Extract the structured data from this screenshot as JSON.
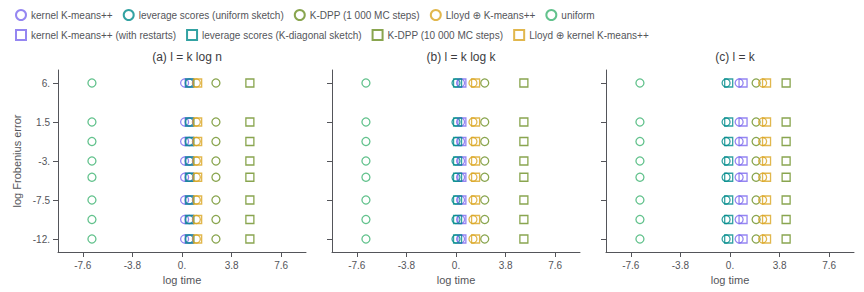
{
  "chart_data": [
    {
      "type": "scatter",
      "title": "(a) l = k log n",
      "xlabel": "log time",
      "ylabel": "log Frobenius error",
      "xlim": [
        -9.5,
        9.5
      ],
      "ylim": [
        -13.5,
        7.5
      ],
      "xticks": [
        -7.6,
        -3.8,
        {
          "value": 0.0,
          "label": "0."
        },
        3.8,
        7.6
      ],
      "yticks": [
        {
          "value": -12.0,
          "label": "-12."
        },
        -7.5,
        {
          "value": -3.0,
          "label": "-3."
        },
        1.5,
        {
          "value": 6.0,
          "label": "6."
        }
      ],
      "grid": false,
      "legend": "upper left",
      "series": [
        {
          "name": "kernel K-means++",
          "marker": "circle",
          "color": "#7B68EE",
          "x": [
            0.2,
            0.2,
            0.2,
            0.2,
            0.2,
            0.2,
            0.2,
            0.2
          ],
          "values": [
            6.0,
            1.5,
            -0.75,
            -3.0,
            -4.875,
            -7.5,
            -9.75,
            -12.0
          ]
        },
        {
          "name": "leverage scores (uniform sketch)",
          "marker": "circle",
          "color": "#008B8B",
          "x": [
            0.55,
            0.55,
            0.55,
            0.55,
            0.55,
            0.55,
            0.55,
            0.55
          ],
          "values": [
            6.0,
            1.5,
            -0.75,
            -3.0,
            -4.875,
            -7.5,
            -9.75,
            -12.0
          ]
        },
        {
          "name": "K-DPP (1 000 MC steps)",
          "marker": "circle",
          "color": "#6B8E23",
          "x": [
            2.6,
            2.6,
            2.6,
            2.6,
            2.6,
            2.6,
            2.6,
            2.6
          ],
          "values": [
            6.0,
            1.5,
            -0.75,
            -3.0,
            -4.875,
            -7.5,
            -9.75,
            -12.0
          ]
        },
        {
          "name": "Lloyd ⊕ K-means++",
          "marker": "circle",
          "color": "#DAA520",
          "x": [
            1.1,
            1.1,
            1.1,
            1.1,
            1.1,
            1.1,
            1.1,
            1.1
          ],
          "values": [
            6.0,
            1.5,
            -0.75,
            -3.0,
            -4.875,
            -7.5,
            -9.75,
            -12.0
          ]
        },
        {
          "name": "uniform",
          "marker": "circle",
          "color": "#3CB371",
          "x": [
            -6.9,
            -6.9,
            -6.9,
            -6.9,
            -6.9,
            -6.9,
            -6.9,
            -6.9
          ],
          "values": [
            6.0,
            1.5,
            -0.75,
            -3.0,
            -4.875,
            -7.5,
            -9.75,
            -12.0
          ]
        },
        {
          "name": "kernel K-means++ (with restarts)",
          "marker": "square",
          "color": "#7B68EE",
          "x": [
            0.55,
            0.55,
            0.55,
            0.55,
            0.55,
            0.55,
            0.55,
            0.55
          ],
          "values": [
            6.0,
            1.5,
            -0.75,
            -3.0,
            -4.875,
            -7.5,
            -9.75,
            -12.0
          ]
        },
        {
          "name": "leverage scores (K-diagonal sketch)",
          "marker": "square",
          "color": "#008B8B",
          "x": [
            0.6,
            0.6,
            0.6,
            0.6,
            0.6,
            0.6,
            0.6,
            0.6
          ],
          "values": [
            6.0,
            1.5,
            -0.75,
            -3.0,
            -4.875,
            -7.5,
            -9.75,
            -12.0
          ]
        },
        {
          "name": "K-DPP (10 000 MC steps)",
          "marker": "square",
          "color": "#6B8E23",
          "x": [
            5.2,
            5.2,
            5.2,
            5.2,
            5.2,
            5.2,
            5.2,
            5.2
          ],
          "values": [
            6.0,
            1.5,
            -0.75,
            -3.0,
            -4.875,
            -7.5,
            -9.75,
            -12.0
          ]
        },
        {
          "name": "Lloyd ⊕ kernel K-means++",
          "marker": "square",
          "color": "#DAA520",
          "x": [
            1.2,
            1.2,
            1.2,
            1.2,
            1.2,
            1.2,
            1.2,
            1.2
          ],
          "values": [
            6.0,
            1.5,
            -0.75,
            -3.0,
            -4.875,
            -7.5,
            -9.75,
            -12.0
          ]
        }
      ]
    },
    {
      "type": "scatter",
      "title": "(b) l = k log k",
      "xlabel": "log time",
      "xlim": [
        -9.5,
        9.5
      ],
      "ylim": [
        -13.5,
        7.5
      ],
      "xticks": [
        -7.6,
        -3.8,
        {
          "value": 0.0,
          "label": "0."
        },
        3.8,
        7.6
      ],
      "yticks": [
        {
          "value": -12.0,
          "label": "-12."
        },
        -7.5,
        {
          "value": -3.0,
          "label": "-3."
        },
        1.5,
        {
          "value": 6.0,
          "label": "6."
        }
      ],
      "grid": false,
      "tick_labels": "x",
      "series": [
        {
          "name": "kernel K-means++",
          "marker": "circle",
          "color": "#7B68EE",
          "x": [
            0.35,
            0.35,
            0.35,
            0.35,
            0.35,
            0.35,
            0.35,
            0.35
          ],
          "values": [
            6.0,
            1.5,
            -0.75,
            -3.0,
            -4.875,
            -7.5,
            -9.75,
            -12.0
          ]
        },
        {
          "name": "leverage scores (uniform sketch)",
          "marker": "circle",
          "color": "#008B8B",
          "x": [
            0.0,
            0.0,
            0.0,
            0.0,
            0.0,
            0.0,
            0.0,
            0.0
          ],
          "values": [
            6.0,
            1.5,
            -0.75,
            -3.0,
            -4.875,
            -7.5,
            -9.75,
            -12.0
          ]
        },
        {
          "name": "K-DPP (1 000 MC steps)",
          "marker": "circle",
          "color": "#6B8E23",
          "x": [
            2.2,
            2.2,
            2.2,
            2.2,
            2.2,
            2.2,
            2.2,
            2.2
          ],
          "values": [
            6.0,
            1.5,
            -0.75,
            -3.0,
            -4.875,
            -7.5,
            -9.75,
            -12.0
          ]
        },
        {
          "name": "Lloyd ⊕ K-means++",
          "marker": "circle",
          "color": "#DAA520",
          "x": [
            1.3,
            1.3,
            1.3,
            1.3,
            1.3,
            1.3,
            1.3,
            1.3
          ],
          "values": [
            6.0,
            1.5,
            -0.75,
            -3.0,
            -4.875,
            -7.5,
            -9.75,
            -12.0
          ]
        },
        {
          "name": "uniform",
          "marker": "circle",
          "color": "#3CB371",
          "x": [
            -6.9,
            -6.9,
            -6.9,
            -6.9,
            -6.9,
            -6.9,
            -6.9,
            -6.9
          ],
          "values": [
            6.0,
            1.5,
            -0.75,
            -3.0,
            -4.875,
            -7.5,
            -9.75,
            -12.0
          ]
        },
        {
          "name": "kernel K-means++ (with restarts)",
          "marker": "square",
          "color": "#7B68EE",
          "x": [
            0.45,
            0.45,
            0.45,
            0.45,
            0.45,
            0.45,
            0.45,
            0.45
          ],
          "values": [
            6.0,
            1.5,
            -0.75,
            -3.0,
            -4.875,
            -7.5,
            -9.75,
            -12.0
          ]
        },
        {
          "name": "leverage scores (K-diagonal sketch)",
          "marker": "square",
          "color": "#008B8B",
          "x": [
            0.12,
            0.12,
            0.12,
            0.12,
            0.12,
            0.12,
            0.12,
            0.12
          ],
          "values": [
            6.0,
            1.5,
            -0.75,
            -3.0,
            -4.875,
            -7.5,
            -9.75,
            -12.0
          ]
        },
        {
          "name": "K-DPP (10 000 MC steps)",
          "marker": "square",
          "color": "#6B8E23",
          "x": [
            5.2,
            5.2,
            5.2,
            5.2,
            5.2,
            5.2,
            5.2,
            5.2
          ],
          "values": [
            6.0,
            1.5,
            -0.75,
            -3.0,
            -4.875,
            -7.5,
            -9.75,
            -12.0
          ]
        },
        {
          "name": "Lloyd ⊕ kernel K-means++",
          "marker": "square",
          "color": "#DAA520",
          "x": [
            1.5,
            1.5,
            1.5,
            1.5,
            1.5,
            1.5,
            1.5,
            1.5
          ],
          "values": [
            6.0,
            1.5,
            -0.75,
            -3.0,
            -4.875,
            -7.5,
            -9.75,
            -12.0
          ]
        }
      ]
    },
    {
      "type": "scatter",
      "title": "(c) l = k",
      "xlabel": "log time",
      "xlim": [
        -9.5,
        9.5
      ],
      "ylim": [
        -13.5,
        7.5
      ],
      "xticks": [
        -7.6,
        -3.8,
        {
          "value": 0.0,
          "label": "0."
        },
        3.8,
        7.6
      ],
      "yticks": [
        {
          "value": -12.0,
          "label": "-12."
        },
        -7.5,
        {
          "value": -3.0,
          "label": "-3."
        },
        1.5,
        {
          "value": 6.0,
          "label": "6."
        }
      ],
      "grid": false,
      "tick_labels": "x",
      "series": [
        {
          "name": "kernel K-means++",
          "marker": "circle",
          "color": "#7B68EE",
          "x": [
            0.7,
            0.7,
            0.7,
            0.7,
            0.7,
            0.7,
            0.7,
            0.7
          ],
          "values": [
            6.0,
            1.5,
            -0.75,
            -3.0,
            -4.875,
            -7.5,
            -9.75,
            -12.0
          ]
        },
        {
          "name": "leverage scores (uniform sketch)",
          "marker": "circle",
          "color": "#008B8B",
          "x": [
            -0.3,
            -0.3,
            -0.3,
            -0.3,
            -0.3,
            -0.3,
            -0.3,
            -0.3
          ],
          "values": [
            6.0,
            1.5,
            -0.75,
            -3.0,
            -4.875,
            -7.5,
            -9.75,
            -12.0
          ]
        },
        {
          "name": "K-DPP (1 000 MC steps)",
          "marker": "circle",
          "color": "#6B8E23",
          "x": [
            2.0,
            2.0,
            2.0,
            2.0,
            2.0,
            2.0,
            2.0,
            2.0
          ],
          "values": [
            6.0,
            1.5,
            -0.75,
            -3.0,
            -4.875,
            -7.5,
            -9.75,
            -12.0
          ]
        },
        {
          "name": "Lloyd ⊕ K-means++",
          "marker": "circle",
          "color": "#DAA520",
          "x": [
            2.5,
            2.5,
            2.5,
            2.5,
            2.5,
            2.5,
            2.5,
            2.5
          ],
          "values": [
            6.0,
            1.5,
            -0.75,
            -3.0,
            -4.875,
            -7.5,
            -9.75,
            -12.0
          ]
        },
        {
          "name": "uniform",
          "marker": "circle",
          "color": "#3CB371",
          "x": [
            -6.9,
            -6.9,
            -6.9,
            -6.9,
            -6.9,
            -6.9,
            -6.9,
            -6.9
          ],
          "values": [
            6.0,
            1.5,
            -0.75,
            -3.0,
            -4.875,
            -7.5,
            -9.75,
            -12.0
          ]
        },
        {
          "name": "kernel K-means++ (with restarts)",
          "marker": "square",
          "color": "#7B68EE",
          "x": [
            1.0,
            1.0,
            1.0,
            1.0,
            1.0,
            1.0,
            1.0,
            1.0
          ],
          "values": [
            6.0,
            1.5,
            -0.75,
            -3.0,
            -4.875,
            -7.5,
            -9.75,
            -12.0
          ]
        },
        {
          "name": "leverage scores (K-diagonal sketch)",
          "marker": "square",
          "color": "#008B8B",
          "x": [
            -0.1,
            -0.1,
            -0.1,
            -0.1,
            -0.1,
            -0.1,
            -0.1,
            -0.1
          ],
          "values": [
            6.0,
            1.5,
            -0.75,
            -3.0,
            -4.875,
            -7.5,
            -9.75,
            -12.0
          ]
        },
        {
          "name": "K-DPP (10 000 MC steps)",
          "marker": "square",
          "color": "#6B8E23",
          "x": [
            4.3,
            4.3,
            4.3,
            4.3,
            4.3,
            4.3,
            4.3,
            4.3
          ],
          "values": [
            6.0,
            1.5,
            -0.75,
            -3.0,
            -4.875,
            -7.5,
            -9.75,
            -12.0
          ]
        },
        {
          "name": "Lloyd ⊕ kernel K-means++",
          "marker": "square",
          "color": "#DAA520",
          "x": [
            2.8,
            2.8,
            2.8,
            2.8,
            2.8,
            2.8,
            2.8,
            2.8
          ],
          "values": [
            6.0,
            1.5,
            -0.75,
            -3.0,
            -4.875,
            -7.5,
            -9.75,
            -12.0
          ]
        }
      ]
    }
  ]
}
